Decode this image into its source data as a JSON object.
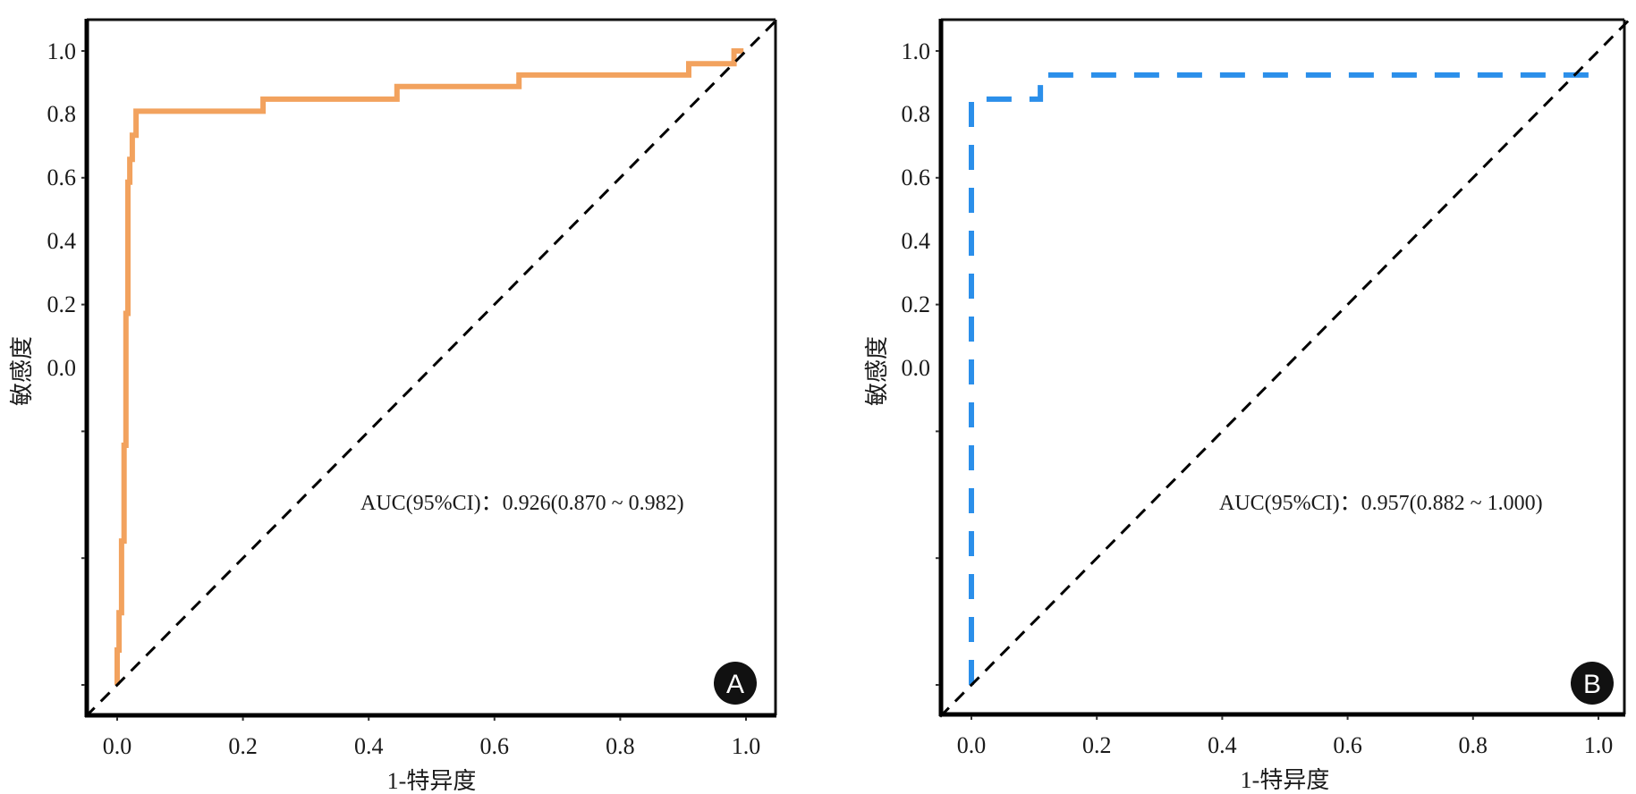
{
  "chart_data": [
    {
      "type": "line",
      "panel_label": "A",
      "xlabel": "1-特异度",
      "ylabel": "敏感度",
      "xlim": [
        0,
        1
      ],
      "ylim": [
        0,
        1
      ],
      "x_ticks": [
        "0.0",
        "0.2",
        "0.4",
        "0.6",
        "0.8",
        "1.0"
      ],
      "y_tick_labels": [
        "1.0",
        "0.8",
        "0.6",
        "0.4",
        "0.2",
        "0.0"
      ],
      "annotation": "AUC(95%CI)：0.926(0.870 ~ 0.982)",
      "grid": false,
      "series": [
        {
          "name": "ROC",
          "color": "#F2A25E",
          "style": "solid",
          "x": [
            0.0,
            0.0,
            0.003,
            0.003,
            0.007,
            0.007,
            0.011,
            0.011,
            0.014,
            0.014,
            0.017,
            0.017,
            0.02,
            0.02,
            0.024,
            0.024,
            0.03,
            0.03,
            0.043,
            0.043,
            0.232,
            0.232,
            0.445,
            0.445,
            0.639,
            0.639,
            0.909,
            0.909,
            0.981,
            0.981,
            0.996
          ],
          "y": [
            0.0,
            0.055,
            0.055,
            0.114,
            0.114,
            0.227,
            0.227,
            0.378,
            0.378,
            0.586,
            0.586,
            0.793,
            0.793,
            0.829,
            0.829,
            0.867,
            0.867,
            0.905,
            0.905,
            0.905,
            0.905,
            0.924,
            0.924,
            0.944,
            0.944,
            0.962,
            0.962,
            0.98,
            0.98,
            1.0,
            1.0
          ]
        },
        {
          "name": "Reference",
          "color": "#000000",
          "style": "dashed",
          "x": [
            -0.05,
            1.05
          ],
          "y": [
            -0.05,
            1.05
          ]
        }
      ]
    },
    {
      "type": "line",
      "panel_label": "B",
      "xlabel": "1-特异度",
      "ylabel": "敏感度",
      "xlim": [
        0,
        1
      ],
      "ylim": [
        0,
        1
      ],
      "x_ticks": [
        "0.0",
        "0.2",
        "0.4",
        "0.6",
        "0.8",
        "1.0"
      ],
      "y_tick_labels": [
        "1.0",
        "0.8",
        "0.6",
        "0.4",
        "0.2",
        "0.0"
      ],
      "annotation": "AUC(95%CI)：0.957(0.882 ~ 1.000)",
      "grid": false,
      "series": [
        {
          "name": "ROC",
          "color": "#2B8FEA",
          "style": "dashed",
          "x": [
            0.0,
            0.0,
            0.11,
            0.11,
            1.0,
            1.0
          ],
          "y": [
            0.0,
            0.924,
            0.924,
            0.962,
            0.962,
            0.97
          ]
        },
        {
          "name": "Reference",
          "color": "#000000",
          "style": "dashed",
          "x": [
            -0.05,
            1.05
          ],
          "y": [
            -0.05,
            1.05
          ]
        }
      ]
    }
  ]
}
